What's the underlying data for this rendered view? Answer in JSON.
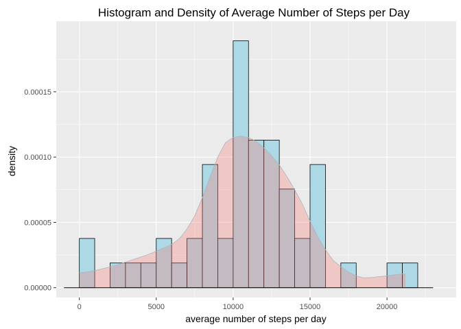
{
  "chart_data": {
    "type": "bar",
    "title": "Histogram and Density of Average Number of Steps per Day",
    "xlabel": "average number of steps per day",
    "ylabel": "density",
    "xlim": [
      -1500,
      24500
    ],
    "ylim": [
      -7.5e-06,
      0.000204
    ],
    "x_ticks": [
      0,
      5000,
      10000,
      15000,
      20000
    ],
    "x_tick_labels": [
      "0",
      "5000",
      "10000",
      "15000",
      "20000"
    ],
    "y_ticks": [
      0,
      5e-05,
      0.0001,
      0.00015
    ],
    "y_tick_labels": [
      "0.00000",
      "0.00005",
      "0.00010",
      "0.00015"
    ],
    "grid": true,
    "legend": "none",
    "histogram": {
      "bin_width": 1000,
      "bin_starts": [
        0,
        1000,
        2000,
        3000,
        4000,
        5000,
        6000,
        7000,
        8000,
        9000,
        10000,
        11000,
        12000,
        13000,
        14000,
        15000,
        16000,
        17000,
        18000,
        19000,
        20000,
        21000
      ],
      "values": [
        3.77e-05,
        0,
        1.89e-05,
        1.89e-05,
        1.89e-05,
        3.77e-05,
        1.89e-05,
        3.77e-05,
        9.43e-05,
        3.77e-05,
        0.000189,
        0.000113,
        0.000113,
        7.55e-05,
        3.77e-05,
        9.43e-05,
        0,
        1.89e-05,
        0,
        0,
        1.89e-05,
        1.89e-05
      ],
      "fill_color": "#add8e6",
      "border_color": "#000000",
      "baseline_range": [
        -1000,
        23000
      ]
    },
    "density": {
      "x": [
        0,
        500,
        1000,
        1500,
        2000,
        2500,
        3000,
        3500,
        4000,
        4500,
        5000,
        5500,
        6000,
        6500,
        7000,
        7500,
        8000,
        8500,
        9000,
        9500,
        10000,
        10500,
        11000,
        11500,
        12000,
        12500,
        13000,
        13500,
        14000,
        14500,
        15000,
        15500,
        16000,
        16500,
        17000,
        17500,
        18000,
        18500,
        19000,
        19500,
        20000,
        20500,
        21000,
        21200
      ],
      "y": [
        1.15e-05,
        1.2e-05,
        1.3e-05,
        1.45e-05,
        1.6e-05,
        1.75e-05,
        1.95e-05,
        2.15e-05,
        2.35e-05,
        2.55e-05,
        2.8e-05,
        3.05e-05,
        3.3e-05,
        3.75e-05,
        4.5e-05,
        5.5e-05,
        6.9e-05,
        8.5e-05,
        0.0001,
        0.000111,
        0.000115,
        0.000116,
        0.000115,
        0.000112,
        0.000107,
        0.000101,
        9.4e-05,
        8.5e-05,
        7.5e-05,
        6.4e-05,
        5.1e-05,
        3.9e-05,
        2.9e-05,
        2.1e-05,
        1.6e-05,
        1.2e-05,
        9e-06,
        7.5e-06,
        7.8e-06,
        8.5e-06,
        9e-06,
        9.8e-06,
        1.05e-05,
        1.03e-05
      ],
      "fill_color": "#f8766d",
      "fill_opacity": 0.3,
      "line_color": "#a7b8c0"
    },
    "colors": {
      "panel_background": "#ebebeb",
      "grid_major": "#ffffff",
      "tick_color": "#333333"
    }
  }
}
